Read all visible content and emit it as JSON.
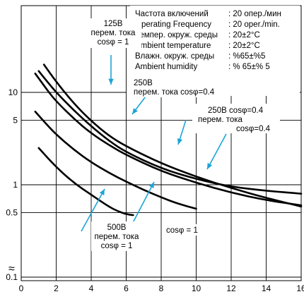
{
  "chart_data": {
    "type": "line",
    "y_scale": "log",
    "xlim": [
      0,
      16
    ],
    "ylim": [
      0.1,
      20
    ],
    "grid": true,
    "x_ticks": [
      0,
      2,
      4,
      6,
      8,
      10,
      12,
      14,
      16
    ],
    "x_tick_labels": [
      "0",
      "2",
      "4",
      "6",
      "8",
      "10",
      "12",
      "14",
      "16"
    ],
    "y_ticks": [
      0.1,
      0.5,
      1,
      5,
      10
    ],
    "y_tick_labels": [
      "0.1",
      "0.5",
      "1",
      "5",
      "10"
    ],
    "axis_break_symbol": "≈",
    "conditions": [
      {
        "label": "Частота включений",
        "value": ": 20 опер./мин"
      },
      {
        "label": "Operating Frequency",
        "value": ": 20 oper./min."
      },
      {
        "label": "Темпер. окруж. среды",
        "value": ": 20±2°C"
      },
      {
        "label": "Ambient temperature",
        "value": ": 20±2°C"
      },
      {
        "label": "Влажн. окруж. среды",
        "value": ": %65±%5"
      },
      {
        "label": "Ambient humidity",
        "value": ": % 65±% 5"
      }
    ],
    "series": [
      {
        "x": [
          1.0,
          1.5,
          2,
          3,
          4,
          5,
          6,
          8,
          10,
          12,
          14,
          16
        ],
        "values": [
          17,
          13,
          10,
          6.4,
          4.3,
          3.0,
          2.25,
          1.5,
          1.15,
          0.95,
          0.86,
          0.8
        ]
      },
      {
        "x": [
          0.8,
          1.5,
          2,
          3,
          4,
          5,
          6,
          8,
          10,
          12,
          14,
          16
        ],
        "values": [
          16,
          10.5,
          8,
          5.2,
          3.6,
          2.7,
          2.1,
          1.4,
          1.05,
          0.82,
          0.68,
          0.6
        ]
      },
      {
        "x": [
          1.3,
          2,
          3,
          4,
          5,
          6,
          8,
          10,
          12,
          14,
          16
        ],
        "values": [
          20,
          13,
          7.6,
          4.9,
          3.4,
          2.6,
          1.7,
          1.22,
          0.92,
          0.72,
          0.58
        ]
      },
      {
        "x": [
          0.8,
          1.5,
          2,
          3,
          4,
          5,
          6,
          7,
          8,
          9,
          10
        ],
        "values": [
          6.2,
          4.4,
          3.5,
          2.4,
          1.75,
          1.35,
          1.08,
          0.88,
          0.73,
          0.62,
          0.55
        ]
      },
      {
        "x": [
          1.0,
          2,
          3,
          4,
          5,
          5.5,
          6,
          6.4
        ],
        "values": [
          2.5,
          1.55,
          1.05,
          0.78,
          0.58,
          0.52,
          0.48,
          0.47
        ]
      }
    ],
    "annotations": [
      {
        "id": "ann-125v",
        "lines": [
          "125B",
          "перем. тока",
          "cosφ = 1"
        ]
      },
      {
        "id": "ann-250v-a",
        "lines": [
          "250B",
          "перем. тока cosφ=0.4"
        ]
      },
      {
        "id": "ann-250v-b",
        "lines": [
          "250B  cosφ=0.4",
          "перем. тока",
          "cosφ=0.4"
        ]
      },
      {
        "id": "ann-500v",
        "lines": [
          "500B",
          "перем. тока",
          "cosφ = 1"
        ]
      },
      {
        "id": "ann-cos1",
        "lines": [
          "cosφ = 1"
        ]
      }
    ],
    "colors": {
      "curve": "#000000",
      "arrow": "#1aa5d6",
      "grid": "#000000"
    }
  }
}
